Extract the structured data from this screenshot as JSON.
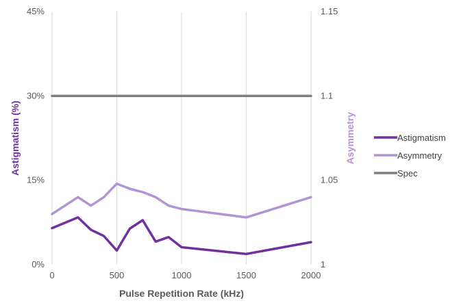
{
  "chart_data": {
    "type": "line",
    "xlabel": "Pulse Repetition Rate (kHz)",
    "ylabel_left": "Astigmatism (%)",
    "ylabel_right": "Asymmetry",
    "x_ticks": [
      "0",
      "500",
      "1000",
      "1500",
      "2000"
    ],
    "y_left_ticks": [
      "0%",
      "15%",
      "30%",
      "45%"
    ],
    "y_right_ticks": [
      "1",
      "1.05",
      "1.1",
      "1.15"
    ],
    "xlim": [
      0,
      2000
    ],
    "ylim_left": [
      0,
      45
    ],
    "ylim_right": [
      1.0,
      1.15
    ],
    "grid": "vertical",
    "legend_position": "right",
    "colors": {
      "astigmatism": "#7030a0",
      "asymmetry": "#b194d4",
      "spec": "#7f7f7f",
      "left_axis_title": "#7030a0",
      "right_axis_title": "#b194d4",
      "grid": "#d9d9d9"
    },
    "series": [
      {
        "name": "Astigmatism",
        "axis": "left",
        "x": [
          0,
          200,
          300,
          400,
          500,
          600,
          700,
          800,
          900,
          1000,
          1500,
          2000
        ],
        "y": [
          6.5,
          8.4,
          6.2,
          5.1,
          2.5,
          6.4,
          7.9,
          4.1,
          4.9,
          3.1,
          1.9,
          4.0
        ]
      },
      {
        "name": "Asymmetry",
        "axis": "right",
        "x": [
          0,
          200,
          300,
          400,
          500,
          600,
          700,
          800,
          900,
          1000,
          1500,
          2000
        ],
        "y": [
          1.03,
          1.04,
          1.035,
          1.04,
          1.048,
          1.045,
          1.043,
          1.04,
          1.035,
          1.033,
          1.028,
          1.04
        ]
      },
      {
        "name": "Spec",
        "axis": "right",
        "x": [
          0,
          2000
        ],
        "y": [
          1.1,
          1.1
        ]
      }
    ]
  }
}
